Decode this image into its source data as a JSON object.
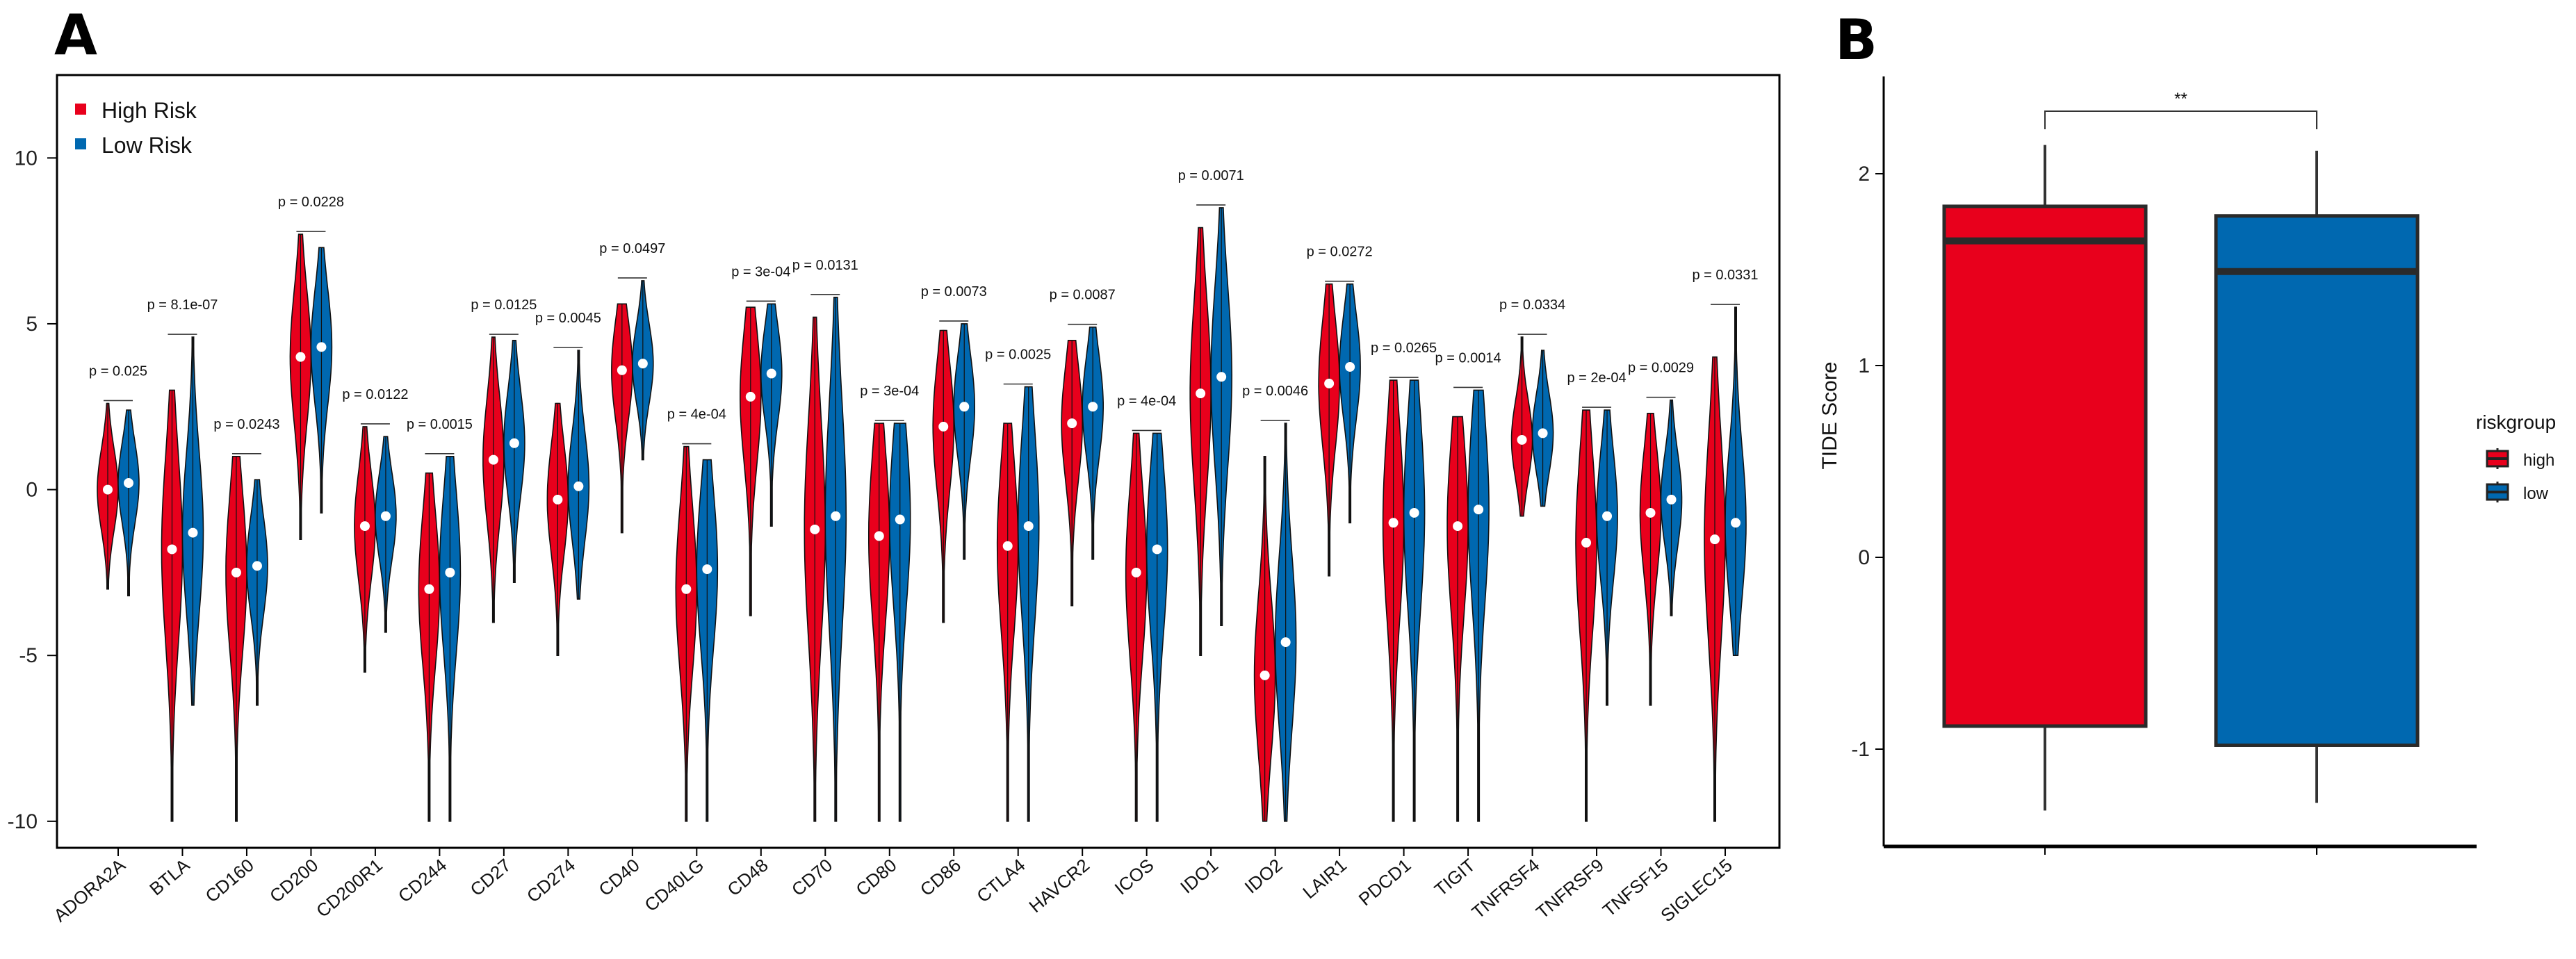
{
  "panels": {
    "a_label": "A",
    "b_label": "B"
  },
  "chart_data": [
    {
      "type": "violin",
      "panel": "A",
      "title": "",
      "xlabel": "",
      "ylabel": "",
      "ylim": [
        -10.5,
        13.5
      ],
      "yticks": [
        -10,
        -5,
        0,
        5,
        10
      ],
      "legend": {
        "placement": "top-left",
        "entries": [
          {
            "name": "High Risk",
            "color": "#E8001C"
          },
          {
            "name": "Low Risk",
            "color": "#0068B0"
          }
        ]
      },
      "categories": [
        "ADORA2A",
        "BTLA",
        "CD160",
        "CD200",
        "CD200R1",
        "CD244",
        "CD27",
        "CD274",
        "CD40",
        "CD40LG",
        "CD48",
        "CD70",
        "CD80",
        "CD86",
        "CTLA4",
        "HAVCR2",
        "ICOS",
        "IDO1",
        "IDO2",
        "LAIR1",
        "PDCD1",
        "TIGIT",
        "TNFRSF4",
        "TNFRSF9",
        "TNFSF15",
        "SIGLEC15"
      ],
      "pvalues": [
        "p = 0.025",
        "p = 8.1e-07",
        "p = 0.0243",
        "p = 0.0228",
        "p = 0.0122",
        "p = 0.0015",
        "p = 0.0125",
        "p = 0.0045",
        "p = 0.0497",
        "p = 4e-04",
        "p = 3e-04",
        "p = 0.0131",
        "p = 3e-04",
        "p = 0.0073",
        "p = 0.0025",
        "p = 0.0087",
        "p = 4e-04",
        "p = 0.0071",
        "p = 0.0046",
        "p = 0.0272",
        "p = 0.0265",
        "p = 0.0014",
        "p = 0.0334",
        "p = 2e-04",
        "p = 0.0029",
        "p = 0.0331"
      ],
      "series": [
        {
          "name": "High Risk",
          "medians": [
            0,
            -1.8,
            -2.5,
            4.0,
            -1.1,
            -3.0,
            0.9,
            -0.3,
            3.6,
            -3.0,
            2.8,
            -1.2,
            -1.4,
            1.9,
            -1.7,
            2.0,
            -2.5,
            2.9,
            -5.6,
            3.2,
            -1.0,
            -1.1,
            1.5,
            -1.6,
            -0.7,
            -1.5
          ],
          "max": [
            2.6,
            3.0,
            1.0,
            7.7,
            1.9,
            0.5,
            4.6,
            2.6,
            5.6,
            1.3,
            5.5,
            5.2,
            2.0,
            4.8,
            2.0,
            4.5,
            1.7,
            7.9,
            1.0,
            6.2,
            3.3,
            2.2,
            4.6,
            2.4,
            2.3,
            4.0
          ],
          "min": [
            -3.0,
            -10.0,
            -10.0,
            -1.5,
            -5.5,
            -10.0,
            -4.0,
            -5.0,
            -1.3,
            -10.0,
            -3.8,
            -10.0,
            -10.0,
            -4.0,
            -10.0,
            -3.5,
            -10.0,
            -5.0,
            -10.0,
            -2.6,
            -10.0,
            -10.0,
            -0.8,
            -10.0,
            -6.5,
            -10.0
          ]
        },
        {
          "name": "Low Risk",
          "medians": [
            0.2,
            -1.3,
            -2.3,
            4.3,
            -0.8,
            -2.5,
            1.4,
            0.1,
            3.8,
            -2.4,
            3.5,
            -0.8,
            -0.9,
            2.5,
            -1.1,
            2.5,
            -1.8,
            3.4,
            -4.6,
            3.7,
            -0.7,
            -0.6,
            1.7,
            -0.8,
            -0.3,
            -1.0
          ],
          "max": [
            2.4,
            4.6,
            0.3,
            7.3,
            1.6,
            1.0,
            4.5,
            4.2,
            6.3,
            0.9,
            5.6,
            5.8,
            2.0,
            5.0,
            3.1,
            4.9,
            1.7,
            8.5,
            2.0,
            6.2,
            3.3,
            3.0,
            4.2,
            2.4,
            2.7,
            5.5
          ],
          "min": [
            -3.2,
            -6.5,
            -6.5,
            -0.7,
            -4.3,
            -10.0,
            -2.8,
            -3.3,
            0.9,
            -10.0,
            -1.1,
            -10.0,
            -10.0,
            -2.1,
            -10.0,
            -2.1,
            -10.0,
            -4.1,
            -10.0,
            -1.0,
            -10.0,
            -10.0,
            -0.5,
            -6.5,
            -3.8,
            -5.0
          ]
        }
      ]
    },
    {
      "type": "box",
      "panel": "B",
      "title": "",
      "xlabel": "",
      "ylabel": "TIDE Score",
      "ylim": [
        -1.5,
        2.5
      ],
      "yticks": [
        -1,
        0,
        1,
        2
      ],
      "significance": "**",
      "legend": {
        "title": "riskgroup",
        "placement": "right",
        "entries": [
          {
            "name": "high",
            "color": "#E8001C"
          },
          {
            "name": "low",
            "color": "#0068B0"
          }
        ]
      },
      "groups": [
        {
          "name": "high",
          "whisker_low": -1.32,
          "q1": -0.88,
          "median": 1.65,
          "q3": 1.83,
          "whisker_high": 2.15
        },
        {
          "name": "low",
          "whisker_low": -1.28,
          "q1": -0.98,
          "median": 1.49,
          "q3": 1.78,
          "whisker_high": 2.12
        }
      ]
    }
  ]
}
